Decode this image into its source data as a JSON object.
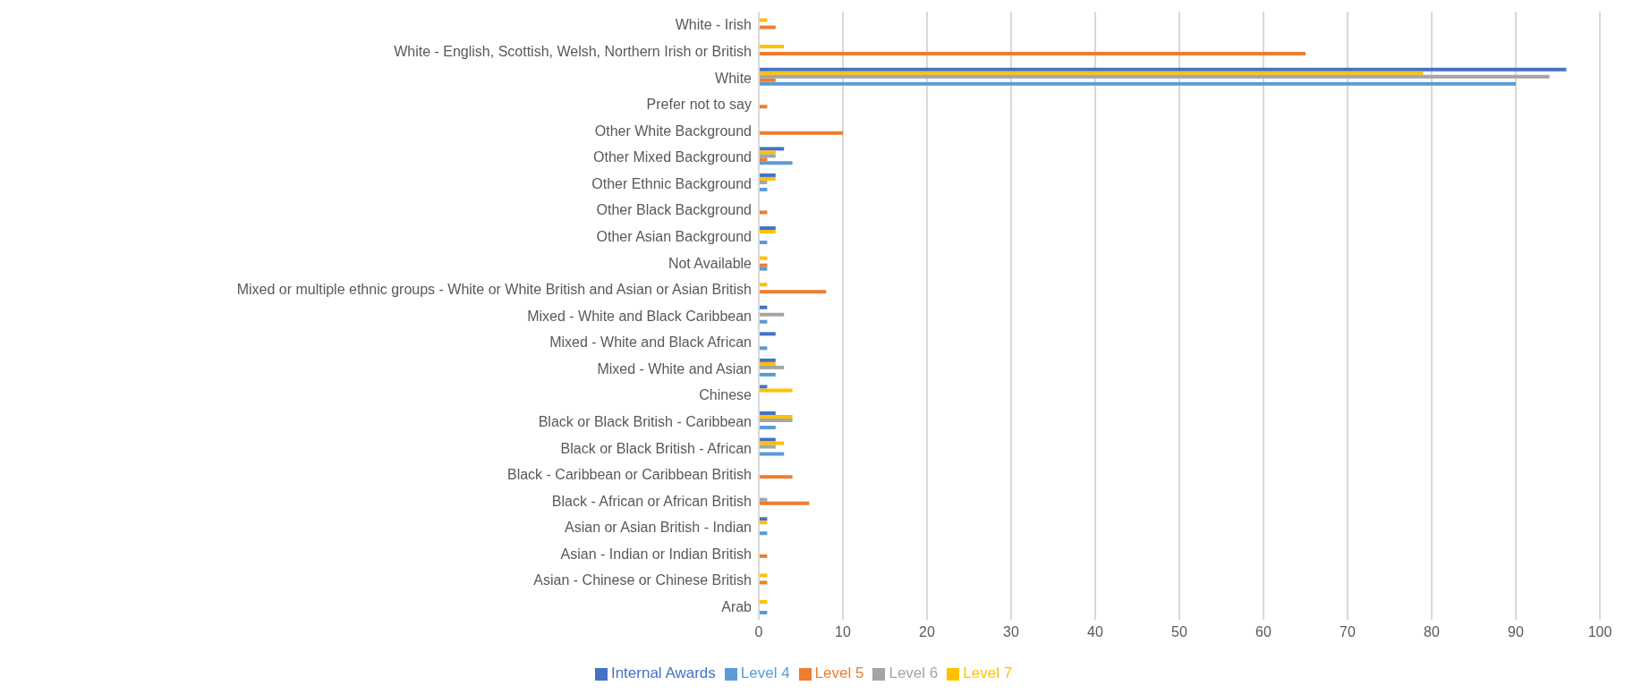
{
  "chart_data": {
    "type": "bar",
    "orientation": "horizontal",
    "categories": [
      "White - Irish",
      "White - English, Scottish, Welsh, Northern Irish or British",
      "White",
      "Prefer not to say",
      "Other White Background",
      "Other Mixed Background",
      "Other Ethnic Background",
      "Other Black Background",
      "Other Asian Background",
      "Not Available",
      "Mixed or multiple ethnic groups - White or White British and Asian or Asian British",
      "Mixed - White and Black Caribbean",
      "Mixed - White and Black African",
      "Mixed - White and Asian",
      "Chinese",
      "Black or Black British - Caribbean",
      "Black or Black British - African",
      "Black - Caribbean or Caribbean British",
      "Black - African or African British",
      "Asian or Asian British - Indian",
      "Asian - Indian or Indian British",
      "Asian - Chinese or Chinese British",
      "Arab"
    ],
    "series": [
      {
        "name": "Internal Awards",
        "color": "#4472c4",
        "values": [
          0,
          0,
          96,
          0,
          0,
          3,
          2,
          0,
          2,
          0,
          0,
          1,
          2,
          2,
          1,
          2,
          2,
          0,
          0,
          1,
          0,
          0,
          0
        ]
      },
      {
        "name": "Level 7",
        "color": "#ffc000",
        "values": [
          1,
          3,
          79,
          0,
          0,
          2,
          2,
          0,
          2,
          1,
          1,
          0,
          0,
          2,
          4,
          4,
          3,
          0,
          0,
          1,
          0,
          1,
          1
        ]
      },
      {
        "name": "Level 6",
        "color": "#a5a5a5",
        "values": [
          0,
          0,
          94,
          0,
          0,
          2,
          1,
          0,
          0,
          0,
          0,
          3,
          0,
          3,
          0,
          4,
          2,
          0,
          1,
          0,
          0,
          0,
          0
        ]
      },
      {
        "name": "Level 5",
        "color": "#ed7d31",
        "values": [
          2,
          65,
          2,
          1,
          10,
          1,
          0,
          1,
          0,
          1,
          8,
          0,
          0,
          0,
          0,
          0,
          0,
          4,
          6,
          0,
          1,
          1,
          0
        ]
      },
      {
        "name": "Level 4",
        "color": "#5b9bd5",
        "values": [
          0,
          0,
          90,
          0,
          0,
          4,
          1,
          0,
          1,
          1,
          0,
          1,
          1,
          2,
          0,
          2,
          3,
          0,
          0,
          1,
          0,
          0,
          1
        ]
      }
    ],
    "xlim": [
      0,
      100
    ],
    "xticks": [
      0,
      10,
      20,
      30,
      40,
      50,
      60,
      70,
      80,
      90,
      100
    ],
    "grid": "x",
    "legend": "bottom"
  }
}
